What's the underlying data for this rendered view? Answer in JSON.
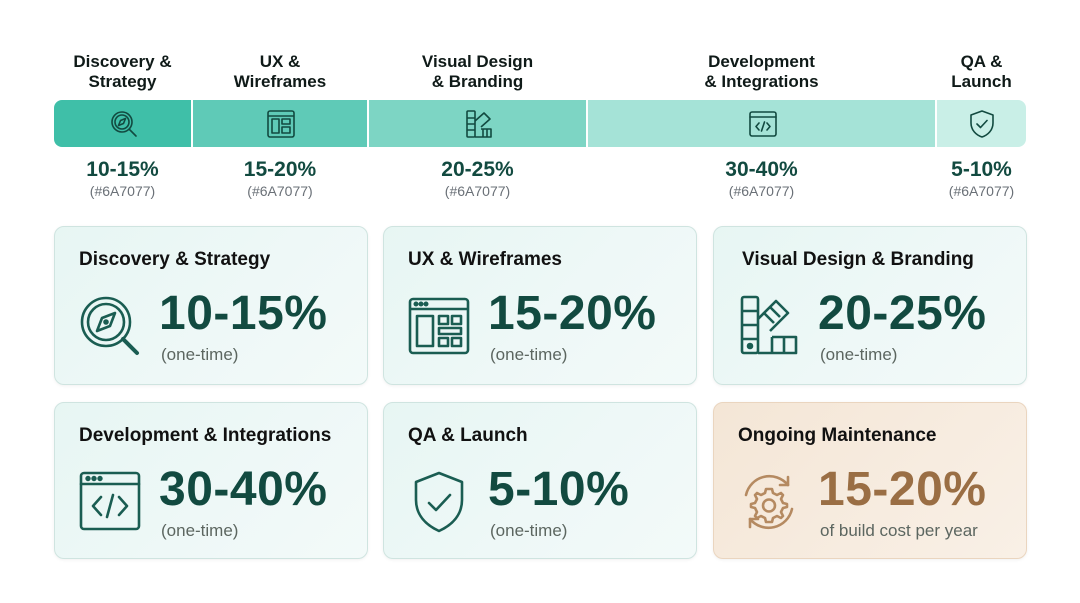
{
  "colors": {
    "accent": "#124a40",
    "icon": "#1a5d52",
    "bar_segments": [
      "#3fbfa8",
      "#5fcab7",
      "#7dd5c4",
      "#a5e3d7",
      "#c9efe7"
    ],
    "hex_text": "#6a7077",
    "warm_value": "#9a6e44",
    "warm_icon": "#b58a61"
  },
  "timeline": [
    {
      "label": "Discovery & Strategy",
      "pct": "10-15%",
      "hex": "(#6A7077)",
      "icon": "compass-search-icon"
    },
    {
      "label": "UX & Wireframes",
      "pct": "15-20%",
      "hex": "(#6A7077)",
      "icon": "wireframe-icon"
    },
    {
      "label": "Visual Design & Branding",
      "pct": "20-25%",
      "hex": "(#6A7077)",
      "icon": "color-swatch-icon"
    },
    {
      "label": "Development & Integrations",
      "pct": "30-40%",
      "hex": "(#6A7077)",
      "icon": "code-window-icon"
    },
    {
      "label": "QA & Launch",
      "pct": "5-10%",
      "hex": "(#6A7077)",
      "icon": "shield-check-icon"
    }
  ],
  "timeline_labels": {
    "discovery": [
      "Discovery &",
      "Strategy"
    ],
    "ux": [
      "UX &",
      "Wireframes"
    ],
    "visual": [
      "Visual Design",
      "& Branding"
    ],
    "dev": [
      "Development",
      "& Integrations"
    ],
    "qa": [
      "QA &",
      "Launch"
    ]
  },
  "cards": [
    {
      "title": "Discovery & Strategy",
      "value": "10-15%",
      "note": "(one-time)",
      "icon": "compass-search-icon"
    },
    {
      "title": "UX & Wireframes",
      "value": "15-20%",
      "note": "(one-time)",
      "icon": "wireframe-icon"
    },
    {
      "title": "Visual Design & Branding",
      "value": "20-25%",
      "note": "(one-time)",
      "icon": "color-swatch-icon"
    },
    {
      "title": "Development & Integrations",
      "value": "30-40%",
      "note": "(one-time)",
      "icon": "code-window-icon"
    },
    {
      "title": "QA & Launch",
      "value": "5-10%",
      "note": "(one-time)",
      "icon": "shield-check-icon"
    },
    {
      "title": "Ongoing Maintenance",
      "value": "15-20%",
      "note": "of build cost per year",
      "icon": "gear-cycle-icon"
    }
  ]
}
